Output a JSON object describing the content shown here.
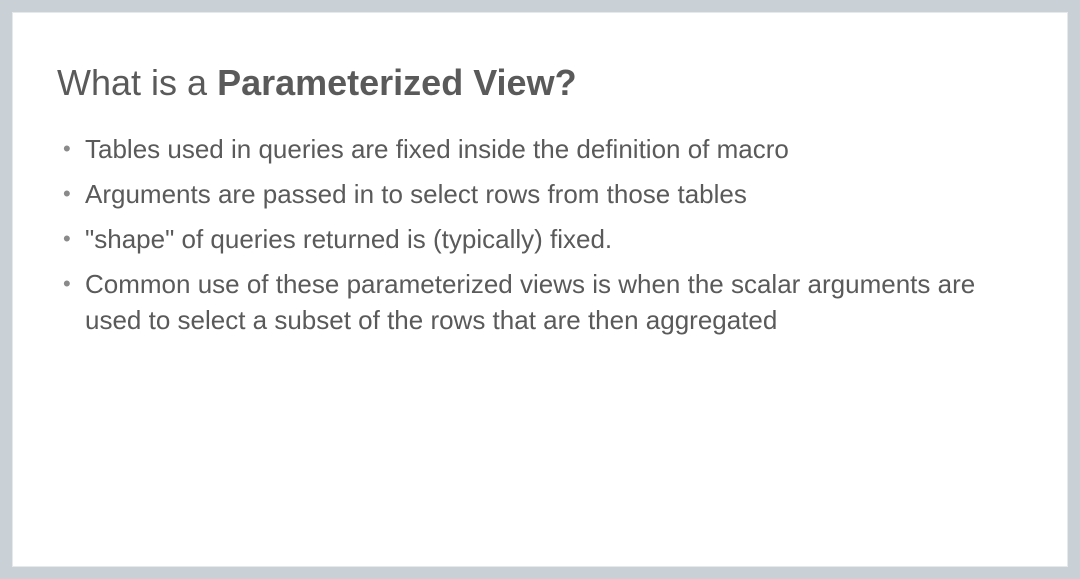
{
  "slide": {
    "background_color": "#ffffff",
    "outer_background_color": "#c9d1d6",
    "text_color": "#5a5a5a",
    "bullet_color": "#8a8a8a",
    "title": {
      "prefix": "What is a ",
      "bold": "Parameterized View?",
      "fontsize": 36
    },
    "bullets": [
      "Tables used in queries are fixed inside the definition of macro",
      "Arguments are passed in to select rows from those tables",
      "\"shape\" of queries returned is (typically) fixed.",
      "Common use of these parameterized views is when the scalar arguments are used to select a subset of the rows that are then aggregated"
    ],
    "bullet_fontsize": 26
  }
}
